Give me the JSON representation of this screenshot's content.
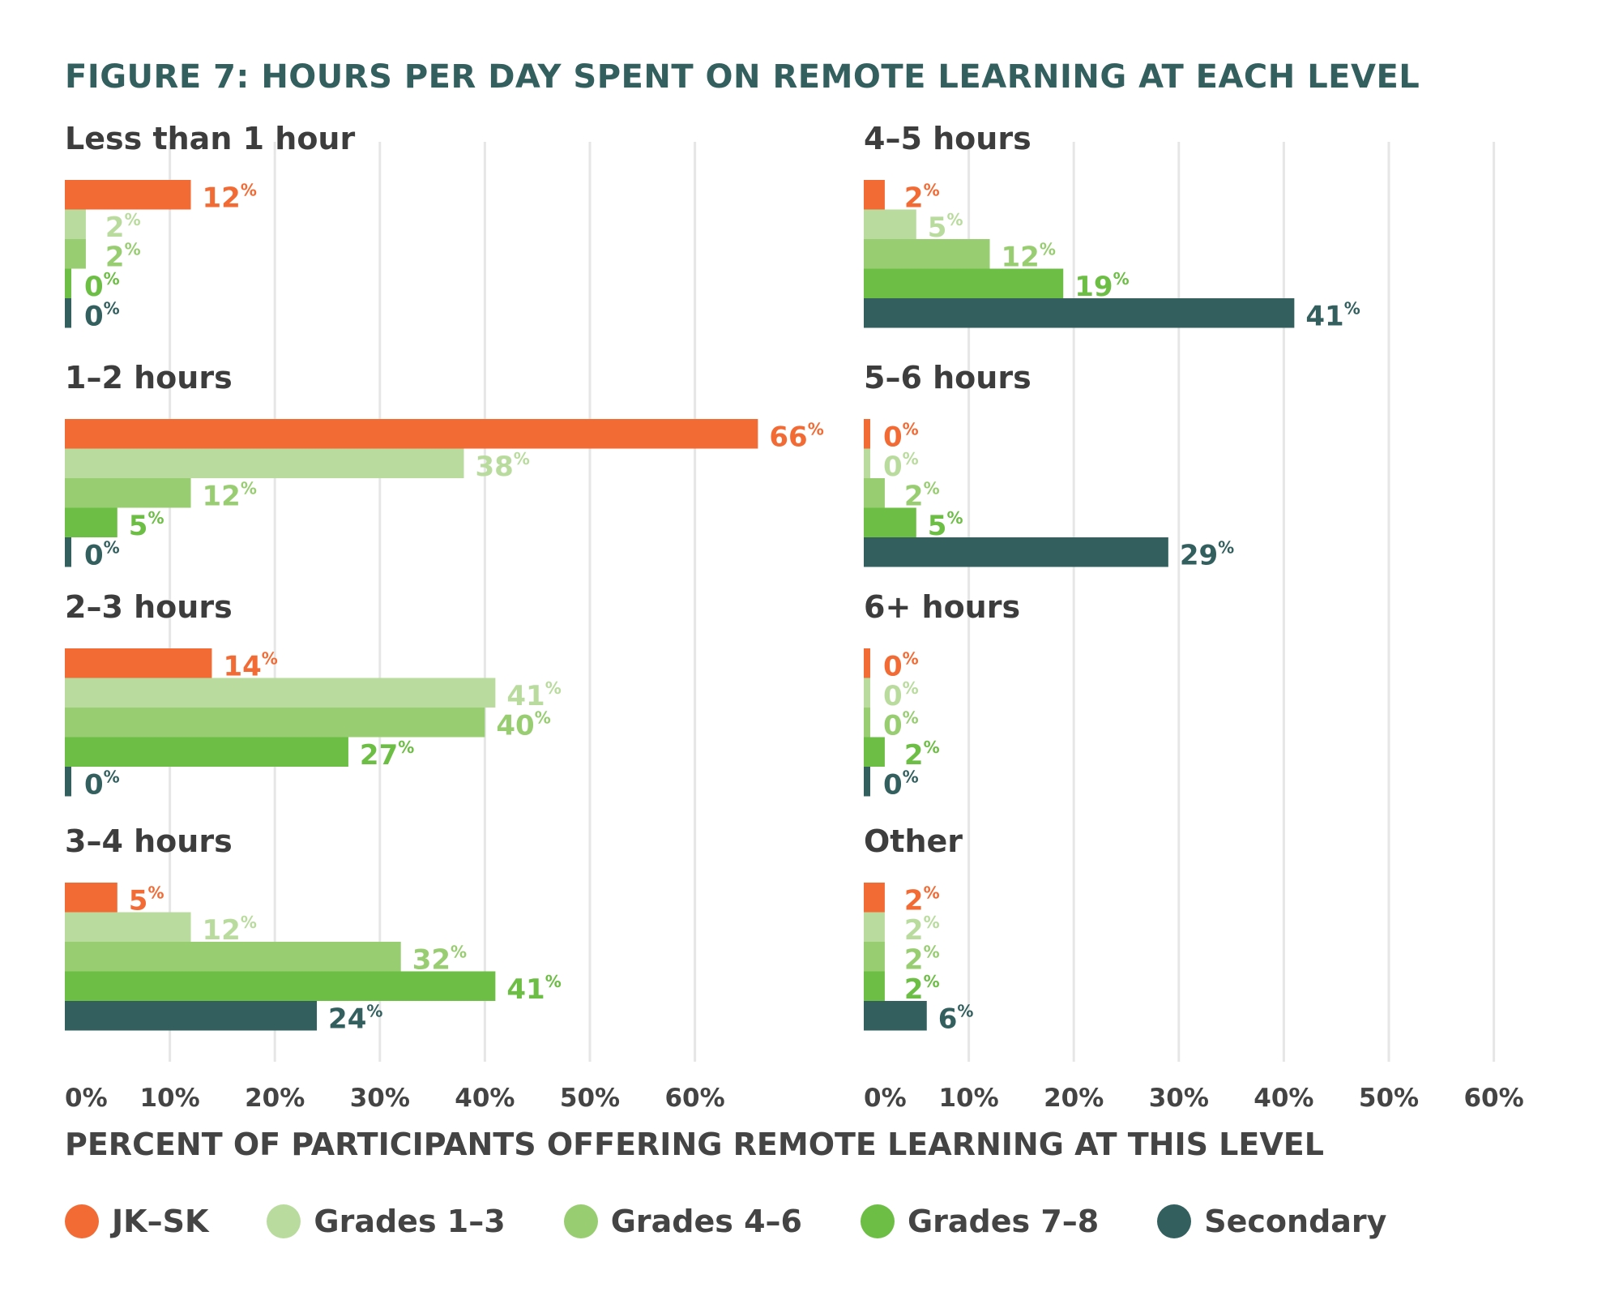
{
  "chart_data": {
    "type": "bar",
    "title": "FIGURE 7: HOURS PER DAY SPENT ON REMOTE LEARNING AT EACH LEVEL",
    "xlabel": "PERCENT OF  PARTICIPANTS OFFERING REMOTE LEARNING AT THIS LEVEL",
    "ylabel": "",
    "xlim": [
      0,
      60
    ],
    "x_ticks": [
      "0%",
      "10%",
      "20%",
      "30%",
      "40%",
      "50%",
      "60%"
    ],
    "grid": true,
    "orientation": "horizontal",
    "legend_position": "bottom",
    "series_names": [
      "JK–SK",
      "Grades 1–3",
      "Grades 4–6",
      "Grades 7–8",
      "Secondary"
    ],
    "series_colors": [
      "#f26b35",
      "#b9dc9e",
      "#98cd72",
      "#6dbe45",
      "#33605f"
    ],
    "panels": [
      {
        "category": "Less than 1 hour",
        "values": [
          12,
          2,
          2,
          0,
          0
        ]
      },
      {
        "category": "1–2 hours",
        "values": [
          66,
          38,
          12,
          5,
          0
        ]
      },
      {
        "category": "2–3 hours",
        "values": [
          14,
          41,
          40,
          27,
          0
        ]
      },
      {
        "category": "3–4 hours",
        "values": [
          5,
          12,
          32,
          41,
          24
        ]
      },
      {
        "category": "4–5 hours",
        "values": [
          2,
          5,
          12,
          19,
          41
        ]
      },
      {
        "category": "5–6 hours",
        "values": [
          0,
          0,
          2,
          5,
          29
        ]
      },
      {
        "category": "6+ hours",
        "values": [
          0,
          0,
          0,
          2,
          0
        ]
      },
      {
        "category": "Other",
        "values": [
          2,
          2,
          2,
          2,
          6
        ]
      }
    ]
  },
  "legend": [
    {
      "label": "JK–SK",
      "color": "#f26b35"
    },
    {
      "label": "Grades 1–3",
      "color": "#b9dc9e"
    },
    {
      "label": "Grades 4–6",
      "color": "#98cd72"
    },
    {
      "label": "Grades 7–8",
      "color": "#6dbe45"
    },
    {
      "label": "Secondary",
      "color": "#33605f"
    }
  ]
}
